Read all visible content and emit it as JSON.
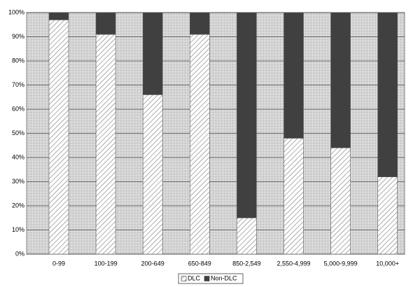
{
  "chart_data": {
    "type": "stacked_bar",
    "categories": [
      "0-99",
      "100-199",
      "200-649",
      "650-849",
      "850-2,549",
      "2,550-4,999",
      "5,000-9,999",
      "10,000+"
    ],
    "series": [
      {
        "name": "DLC",
        "color": "#ffffff",
        "pattern": "hatch",
        "values": [
          97,
          91,
          66,
          91,
          15,
          48,
          44,
          32
        ]
      },
      {
        "name": "Non-DLC",
        "color": "#404040",
        "values": [
          3,
          9,
          34,
          9,
          85,
          52,
          56,
          68
        ]
      }
    ],
    "ylim": [
      0,
      100
    ],
    "yticks": [
      {
        "value": 0,
        "label": "0%"
      },
      {
        "value": 10,
        "label": "10%"
      },
      {
        "value": 20,
        "label": "20%"
      },
      {
        "value": 30,
        "label": "30%"
      },
      {
        "value": 40,
        "label": "40%"
      },
      {
        "value": 50,
        "label": "50%"
      },
      {
        "value": 60,
        "label": "60%"
      },
      {
        "value": 70,
        "label": "70%"
      },
      {
        "value": 80,
        "label": "80%"
      },
      {
        "value": 90,
        "label": "90%"
      },
      {
        "value": 100,
        "label": "100%"
      }
    ],
    "grid": true,
    "legend": "bottom"
  }
}
